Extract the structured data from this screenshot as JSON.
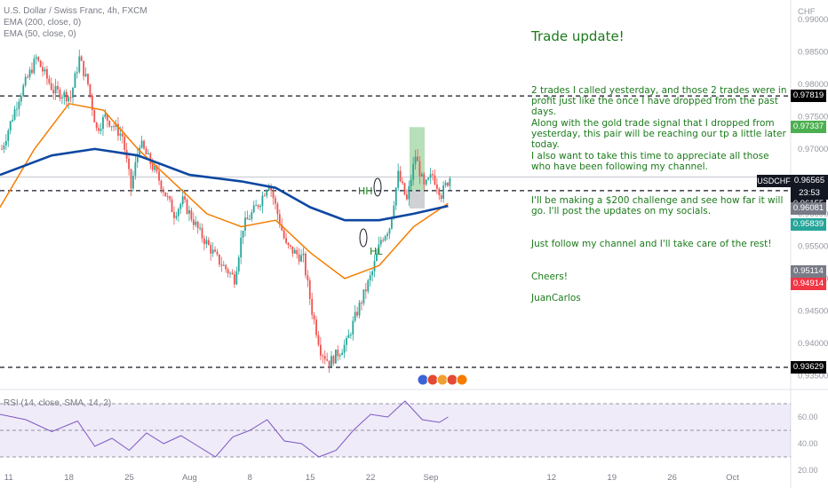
{
  "legend": {
    "symbol": "U.S. Dollar / Swiss Franc, 4h, FXCM",
    "ema200": "EMA (200, close, 0)",
    "ema50": "EMA (50, close, 0)",
    "rsi": "RSI (14, close, SMA, 14, 2)"
  },
  "note": {
    "title": "Trade update!",
    "p1": "2 trades I called yesterday, and those 2 trades were in profit just like the once I have dropped from the past days.",
    "p2": "Along with the gold trade signal that I dropped from yesterday, this pair will be reaching our tp a little later today.",
    "p3": "I also want to take this time to appreciate all those who have been following my channel.",
    "p4": "I'll be making a $200 challenge and see how far it will go. I'll post the updates on my socials.",
    "p5": "Just follow my channel and I'll take care of the rest!",
    "p6": "Cheers!",
    "p7": "JuanCarlos"
  },
  "annotations": {
    "hh": "HH",
    "hl": "HL"
  },
  "price_tags": [
    {
      "label": "0.97819",
      "color": "#000000",
      "text_color": "#ffffff"
    },
    {
      "label": "0.97337",
      "color": "#4caf50",
      "text_color": "#ffffff"
    },
    {
      "label": "0.96357",
      "color": "#787b86",
      "text_color": "#ffffff"
    },
    {
      "label": "0.96155",
      "color": "#131722",
      "text_color": "#ffffff"
    },
    {
      "label": "0.96081",
      "color": "#787b86",
      "text_color": "#ffffff"
    },
    {
      "label": "0.95839",
      "color": "#26a69a",
      "text_color": "#ffffff"
    },
    {
      "label": "0.95114",
      "color": "#787b86",
      "text_color": "#ffffff"
    },
    {
      "label": "0.94914",
      "color": "#f23645",
      "text_color": "#ffffff"
    },
    {
      "label": "0.93629",
      "color": "#000000",
      "text_color": "#ffffff"
    }
  ],
  "current": {
    "symbol": "USDCHF",
    "price": "0.96565",
    "countdown": "23:53"
  },
  "axis": {
    "currency": "CHF"
  },
  "chart_data": {
    "type": "candlestick",
    "price_ticks": [
      0.99,
      0.985,
      0.98,
      0.975,
      0.97,
      0.965,
      0.96,
      0.955,
      0.95,
      0.945,
      0.94,
      0.935
    ],
    "price_tick_labels": [
      "0.99000",
      "0.98500",
      "0.98000",
      "0.97500",
      "0.97000",
      "0.96500",
      "0.96000",
      "0.95500",
      "0.95000",
      "0.94500",
      "0.94000",
      "0.93500"
    ],
    "ylim": [
      0.933,
      0.993
    ],
    "x_ticks": [
      "11",
      "18",
      "25",
      "Aug",
      "8",
      "15",
      "22",
      "Sep",
      "12",
      "19",
      "26",
      "Oct",
      "10"
    ],
    "horizontal_levels": [
      0.97819,
      0.96357,
      0.93629
    ],
    "close_path": [
      {
        "d": 0,
        "c": 0.97
      },
      {
        "d": 2,
        "c": 0.978
      },
      {
        "d": 4,
        "c": 0.984
      },
      {
        "d": 6,
        "c": 0.979
      },
      {
        "d": 8,
        "c": 0.978
      },
      {
        "d": 9,
        "c": 0.984
      },
      {
        "d": 10,
        "c": 0.98
      },
      {
        "d": 11,
        "c": 0.973
      },
      {
        "d": 12,
        "c": 0.975
      },
      {
        "d": 14,
        "c": 0.972
      },
      {
        "d": 15,
        "c": 0.964
      },
      {
        "d": 16,
        "c": 0.971
      },
      {
        "d": 18,
        "c": 0.966
      },
      {
        "d": 20,
        "c": 0.96
      },
      {
        "d": 21,
        "c": 0.962
      },
      {
        "d": 23,
        "c": 0.957
      },
      {
        "d": 25,
        "c": 0.953
      },
      {
        "d": 27,
        "c": 0.95
      },
      {
        "d": 28,
        "c": 0.958
      },
      {
        "d": 30,
        "c": 0.962
      },
      {
        "d": 31,
        "c": 0.965
      },
      {
        "d": 33,
        "c": 0.955
      },
      {
        "d": 35,
        "c": 0.953
      },
      {
        "d": 36,
        "c": 0.945
      },
      {
        "d": 37,
        "c": 0.939
      },
      {
        "d": 38,
        "c": 0.937
      },
      {
        "d": 40,
        "c": 0.94
      },
      {
        "d": 41,
        "c": 0.944
      },
      {
        "d": 43,
        "c": 0.951
      },
      {
        "d": 44,
        "c": 0.956
      },
      {
        "d": 45,
        "c": 0.958
      },
      {
        "d": 46,
        "c": 0.966
      },
      {
        "d": 47,
        "c": 0.962
      },
      {
        "d": 48,
        "c": 0.969
      },
      {
        "d": 49,
        "c": 0.964
      },
      {
        "d": 50,
        "c": 0.966
      },
      {
        "d": 51,
        "c": 0.963
      },
      {
        "d": 52,
        "c": 0.96565
      }
    ],
    "ema50": [
      {
        "d": 0,
        "v": 0.961
      },
      {
        "d": 4,
        "v": 0.97
      },
      {
        "d": 8,
        "v": 0.977
      },
      {
        "d": 12,
        "v": 0.976
      },
      {
        "d": 16,
        "v": 0.97
      },
      {
        "d": 20,
        "v": 0.965
      },
      {
        "d": 24,
        "v": 0.96
      },
      {
        "d": 28,
        "v": 0.958
      },
      {
        "d": 32,
        "v": 0.959
      },
      {
        "d": 36,
        "v": 0.954
      },
      {
        "d": 40,
        "v": 0.95
      },
      {
        "d": 44,
        "v": 0.952
      },
      {
        "d": 48,
        "v": 0.958
      },
      {
        "d": 52,
        "v": 0.9616
      }
    ],
    "ema200": [
      {
        "d": 0,
        "v": 0.966
      },
      {
        "d": 6,
        "v": 0.969
      },
      {
        "d": 11,
        "v": 0.97
      },
      {
        "d": 16,
        "v": 0.969
      },
      {
        "d": 22,
        "v": 0.966
      },
      {
        "d": 28,
        "v": 0.965
      },
      {
        "d": 32,
        "v": 0.964
      },
      {
        "d": 36,
        "v": 0.961
      },
      {
        "d": 40,
        "v": 0.959
      },
      {
        "d": 44,
        "v": 0.959
      },
      {
        "d": 48,
        "v": 0.96
      },
      {
        "d": 52,
        "v": 0.9612
      }
    ],
    "trade_box": {
      "entry": 0.96357,
      "tp": 0.97337,
      "stop": 0.96081
    },
    "rsi": {
      "ticks": [
        80,
        60,
        40,
        20
      ],
      "tick_labels": [
        "80.00",
        "60.00",
        "40.00",
        "20.00"
      ],
      "ylim": [
        20,
        80
      ],
      "bands": [
        70,
        30
      ],
      "values": [
        {
          "d": 0,
          "v": 62
        },
        {
          "d": 3,
          "v": 58
        },
        {
          "d": 6,
          "v": 49
        },
        {
          "d": 9,
          "v": 57
        },
        {
          "d": 11,
          "v": 38
        },
        {
          "d": 13,
          "v": 44
        },
        {
          "d": 15,
          "v": 35
        },
        {
          "d": 17,
          "v": 48
        },
        {
          "d": 19,
          "v": 40
        },
        {
          "d": 21,
          "v": 46
        },
        {
          "d": 23,
          "v": 38
        },
        {
          "d": 25,
          "v": 30
        },
        {
          "d": 27,
          "v": 45
        },
        {
          "d": 29,
          "v": 50
        },
        {
          "d": 31,
          "v": 58
        },
        {
          "d": 33,
          "v": 42
        },
        {
          "d": 35,
          "v": 40
        },
        {
          "d": 37,
          "v": 30
        },
        {
          "d": 39,
          "v": 35
        },
        {
          "d": 41,
          "v": 50
        },
        {
          "d": 43,
          "v": 62
        },
        {
          "d": 45,
          "v": 60
        },
        {
          "d": 47,
          "v": 72
        },
        {
          "d": 49,
          "v": 58
        },
        {
          "d": 51,
          "v": 56
        },
        {
          "d": 52,
          "v": 60
        }
      ]
    }
  }
}
